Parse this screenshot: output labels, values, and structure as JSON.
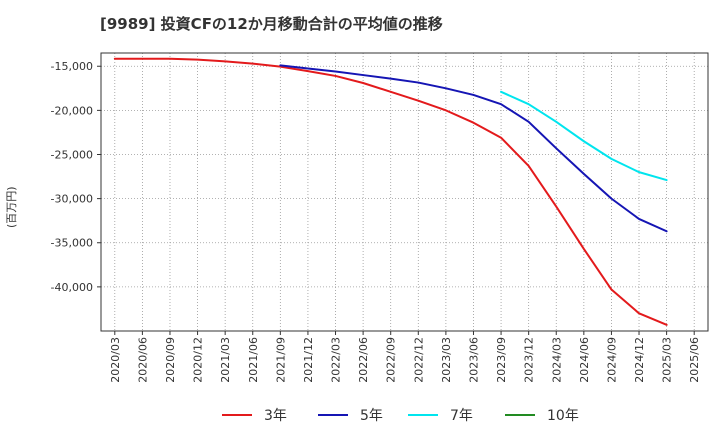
{
  "chart_data": {
    "type": "line",
    "title": "[9989]  投資CFの12か月移動合計の平均値の推移",
    "ylabel": "(百万円)",
    "xlabel": "",
    "ylim": [
      -45000,
      -13500
    ],
    "yticks": [
      -15000,
      -20000,
      -25000,
      -30000,
      -35000,
      -40000
    ],
    "ytick_labels": [
      "-15,000",
      "-20,000",
      "-25,000",
      "-30,000",
      "-35,000",
      "-40,000"
    ],
    "x_tick_labels": [
      "2020/03",
      "2020/06",
      "2020/09",
      "2020/12",
      "2021/03",
      "2021/06",
      "2021/09",
      "2021/12",
      "2022/03",
      "2022/06",
      "2022/09",
      "2022/12",
      "2023/03",
      "2023/06",
      "2023/09",
      "2023/12",
      "2024/03",
      "2024/06",
      "2024/09",
      "2024/12",
      "2025/03",
      "2025/06"
    ],
    "grid": true,
    "legend_position": "bottom",
    "series": [
      {
        "name": "3年",
        "color": "#e31a1c",
        "x": [
          "2020/03",
          "2020/06",
          "2020/09",
          "2020/12",
          "2021/03",
          "2021/06",
          "2021/09",
          "2021/12",
          "2022/03",
          "2022/06",
          "2022/09",
          "2022/12",
          "2023/03",
          "2023/06",
          "2023/09",
          "2023/12",
          "2024/03",
          "2024/06",
          "2024/09",
          "2024/12",
          "2025/03"
        ],
        "values": [
          -14150,
          -14150,
          -14150,
          -14250,
          -14450,
          -14700,
          -15050,
          -15550,
          -16100,
          -16900,
          -17900,
          -18900,
          -20000,
          -21400,
          -23100,
          -26300,
          -30900,
          -35700,
          -40300,
          -43000,
          -44300
        ]
      },
      {
        "name": "5年",
        "color": "#1515b4",
        "x": [
          "2021/09",
          "2021/12",
          "2022/03",
          "2022/06",
          "2022/09",
          "2022/12",
          "2023/03",
          "2023/06",
          "2023/09",
          "2023/12",
          "2024/03",
          "2024/06",
          "2024/09",
          "2024/12",
          "2025/03"
        ],
        "values": [
          -14900,
          -15250,
          -15600,
          -16000,
          -16400,
          -16850,
          -17500,
          -18250,
          -19300,
          -21300,
          -24300,
          -27200,
          -30000,
          -32300,
          -33700
        ]
      },
      {
        "name": "7年",
        "color": "#00e5ee",
        "x": [
          "2023/09",
          "2023/12",
          "2024/03",
          "2024/06",
          "2024/09",
          "2024/12",
          "2025/03"
        ],
        "values": [
          -17900,
          -19300,
          -21300,
          -23500,
          -25500,
          -27000,
          -27900
        ]
      },
      {
        "name": "10年",
        "color": "#228b22",
        "x": [],
        "values": []
      }
    ]
  }
}
